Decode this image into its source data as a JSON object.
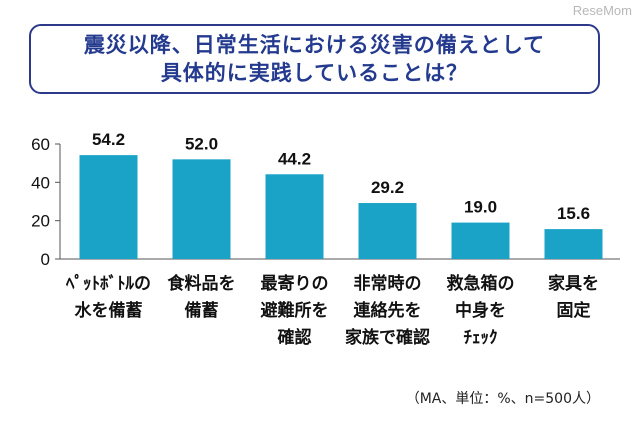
{
  "title_lines": [
    "震災以降、日常生活における災害の備えとして",
    "具体的に実践していることは？"
  ],
  "watermark": "ReseMom",
  "note": "（MA、単位：%、n=500人）",
  "colors": {
    "bar": "#1aa3c7",
    "title": "#243a8f",
    "axis": "#555555"
  },
  "chart_data": {
    "type": "bar",
    "title": "震災以降、日常生活における災害の備えとして具体的に実践していることは？",
    "categories": [
      [
        "ﾍﾟｯﾄﾎﾞﾄﾙの",
        "水を備蓄"
      ],
      [
        "食料品を",
        "備蓄"
      ],
      [
        "最寄りの",
        "避難所を",
        "確認"
      ],
      [
        "非常時の",
        "連絡先を",
        "家族で確認"
      ],
      [
        "救急箱の",
        "中身を",
        "ﾁｪｯｸ"
      ],
      [
        "家具を",
        "固定"
      ]
    ],
    "values": [
      54.2,
      52.0,
      44.2,
      29.2,
      19.0,
      15.6
    ],
    "value_labels": [
      "54.2",
      "52.0",
      "44.2",
      "29.2",
      "19.0",
      "15.6"
    ],
    "yticks": [
      0,
      20,
      40,
      60
    ],
    "ylim": [
      0,
      60
    ],
    "xlabel": "",
    "ylabel": "",
    "grid": false,
    "legend": "none"
  }
}
